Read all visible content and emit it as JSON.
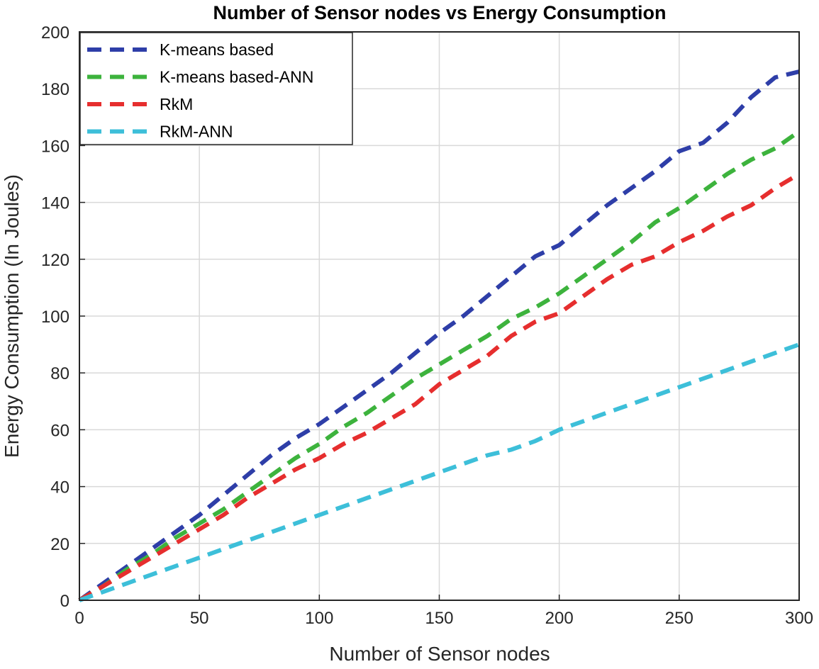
{
  "chart_data": {
    "type": "line",
    "title": "Number of Sensor nodes vs Energy Consumption",
    "xlabel": "Number of Sensor nodes",
    "ylabel": "Energy Consumption (In Joules)",
    "xlim": [
      0,
      300
    ],
    "ylim": [
      0,
      200
    ],
    "xticks": [
      0,
      50,
      100,
      150,
      200,
      250,
      300
    ],
    "yticks": [
      0,
      20,
      40,
      60,
      80,
      100,
      120,
      140,
      160,
      180,
      200
    ],
    "grid": true,
    "legend_position": "top-left",
    "x": [
      0,
      10,
      20,
      30,
      40,
      50,
      60,
      70,
      80,
      90,
      100,
      110,
      120,
      130,
      140,
      150,
      160,
      170,
      180,
      190,
      200,
      210,
      220,
      230,
      240,
      250,
      260,
      270,
      280,
      290,
      300
    ],
    "series": [
      {
        "name": "K-means based",
        "color": "#2e3ea8",
        "values": [
          0,
          6,
          12,
          18,
          24,
          30,
          37,
          44,
          51,
          57,
          62,
          68,
          74,
          80,
          87,
          94,
          100,
          107,
          114,
          121,
          125,
          132,
          139,
          145,
          151,
          158,
          161,
          168,
          177,
          184,
          186
        ]
      },
      {
        "name": "K-means based-ANN",
        "color": "#3db33d",
        "values": [
          0,
          5,
          11,
          16,
          22,
          27,
          32,
          38,
          44,
          50,
          55,
          61,
          66,
          72,
          78,
          83,
          88,
          93,
          99,
          103,
          108,
          114,
          120,
          126,
          133,
          138,
          144,
          150,
          155,
          159,
          165
        ]
      },
      {
        "name": "RkM",
        "color": "#e62e2e",
        "values": [
          0,
          5,
          10,
          15,
          20,
          25,
          30,
          36,
          41,
          46,
          50,
          55,
          59,
          64,
          69,
          76,
          81,
          86,
          93,
          98,
          101,
          107,
          113,
          118,
          121,
          126,
          130,
          135,
          139,
          145,
          150
        ]
      },
      {
        "name": "RkM-ANN",
        "color": "#3dbfd9",
        "values": [
          0,
          3,
          6,
          9,
          12,
          15,
          18,
          21,
          24,
          27,
          30,
          33,
          36,
          39,
          42,
          45,
          48,
          51,
          53,
          56,
          60,
          63,
          66,
          69,
          72,
          75,
          78,
          81,
          84,
          87,
          90
        ]
      }
    ]
  }
}
